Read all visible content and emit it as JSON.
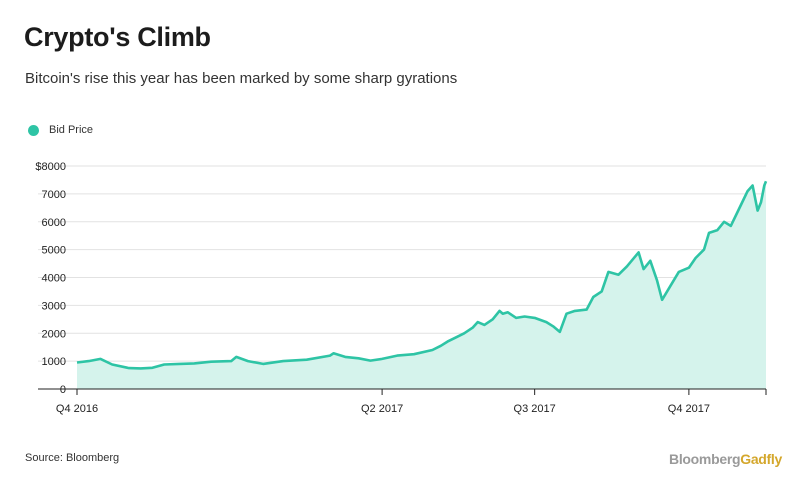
{
  "title": "Crypto's Climb",
  "subtitle": "Bitcoin's rise this year has been marked by some sharp gyrations",
  "legend": {
    "label": "Bid Price",
    "color": "#2ec4a5"
  },
  "source": "Source: Bloomberg",
  "brand": {
    "part1": "Bloomberg",
    "part2": "Gadfly"
  },
  "colors": {
    "line": "#2ec4a5",
    "fill": "#d5f3ec",
    "grid": "#e2e2e2",
    "axis": "#222222"
  },
  "chart_data": {
    "type": "area",
    "xlabel": "",
    "ylabel": "",
    "ylim": [
      0,
      8000
    ],
    "yticks": [
      {
        "value": 0,
        "label": "0"
      },
      {
        "value": 1000,
        "label": "1000"
      },
      {
        "value": 2000,
        "label": "2000"
      },
      {
        "value": 3000,
        "label": "3000"
      },
      {
        "value": 4000,
        "label": "4000"
      },
      {
        "value": 5000,
        "label": "5000"
      },
      {
        "value": 6000,
        "label": "6000"
      },
      {
        "value": 7000,
        "label": "7000"
      },
      {
        "value": 8000,
        "label": "$8000"
      }
    ],
    "xlim": [
      "2016-10-01",
      "2017-11-16"
    ],
    "xticks": [
      {
        "date": "2016-10-01",
        "label": "Q4 2016"
      },
      {
        "date": "2017-04-01",
        "label": "Q2 2017"
      },
      {
        "date": "2017-07-01",
        "label": "Q3 2017"
      },
      {
        "date": "2017-10-01",
        "label": "Q4 2017"
      }
    ],
    "grid": true,
    "legend_position": "top-left",
    "series": [
      {
        "name": "Bid Price",
        "x": [
          "2016-10-01",
          "2016-10-08",
          "2016-10-15",
          "2016-10-22",
          "2016-11-01",
          "2016-11-08",
          "2016-11-15",
          "2016-11-22",
          "2016-12-01",
          "2016-12-10",
          "2016-12-20",
          "2017-01-01",
          "2017-01-04",
          "2017-01-11",
          "2017-01-20",
          "2017-02-01",
          "2017-02-15",
          "2017-03-01",
          "2017-03-03",
          "2017-03-10",
          "2017-03-18",
          "2017-03-25",
          "2017-04-01",
          "2017-04-10",
          "2017-04-20",
          "2017-05-01",
          "2017-05-06",
          "2017-05-10",
          "2017-05-15",
          "2017-05-20",
          "2017-05-25",
          "2017-05-28",
          "2017-06-01",
          "2017-06-06",
          "2017-06-10",
          "2017-06-12",
          "2017-06-15",
          "2017-06-20",
          "2017-06-25",
          "2017-07-01",
          "2017-07-08",
          "2017-07-12",
          "2017-07-16",
          "2017-07-20",
          "2017-07-25",
          "2017-08-01",
          "2017-08-05",
          "2017-08-10",
          "2017-08-14",
          "2017-08-20",
          "2017-08-25",
          "2017-09-01",
          "2017-09-04",
          "2017-09-08",
          "2017-09-12",
          "2017-09-15",
          "2017-09-20",
          "2017-09-25",
          "2017-10-01",
          "2017-10-05",
          "2017-10-10",
          "2017-10-13",
          "2017-10-18",
          "2017-10-22",
          "2017-10-26",
          "2017-11-01",
          "2017-11-05",
          "2017-11-08",
          "2017-11-11",
          "2017-11-13",
          "2017-11-15",
          "2017-11-16"
        ],
        "values": [
          950,
          1000,
          1080,
          880,
          750,
          740,
          760,
          880,
          900,
          920,
          980,
          1000,
          1150,
          1000,
          900,
          1000,
          1050,
          1200,
          1280,
          1150,
          1100,
          1020,
          1080,
          1200,
          1250,
          1400,
          1550,
          1700,
          1850,
          2000,
          2200,
          2400,
          2300,
          2500,
          2800,
          2700,
          2750,
          2550,
          2600,
          2550,
          2400,
          2250,
          2050,
          2700,
          2800,
          2850,
          3300,
          3500,
          4200,
          4100,
          4400,
          4900,
          4300,
          4600,
          3900,
          3200,
          3700,
          4200,
          4350,
          4700,
          5000,
          5600,
          5700,
          6000,
          5850,
          6600,
          7100,
          7300,
          6400,
          6700,
          7300,
          7450
        ]
      }
    ]
  }
}
